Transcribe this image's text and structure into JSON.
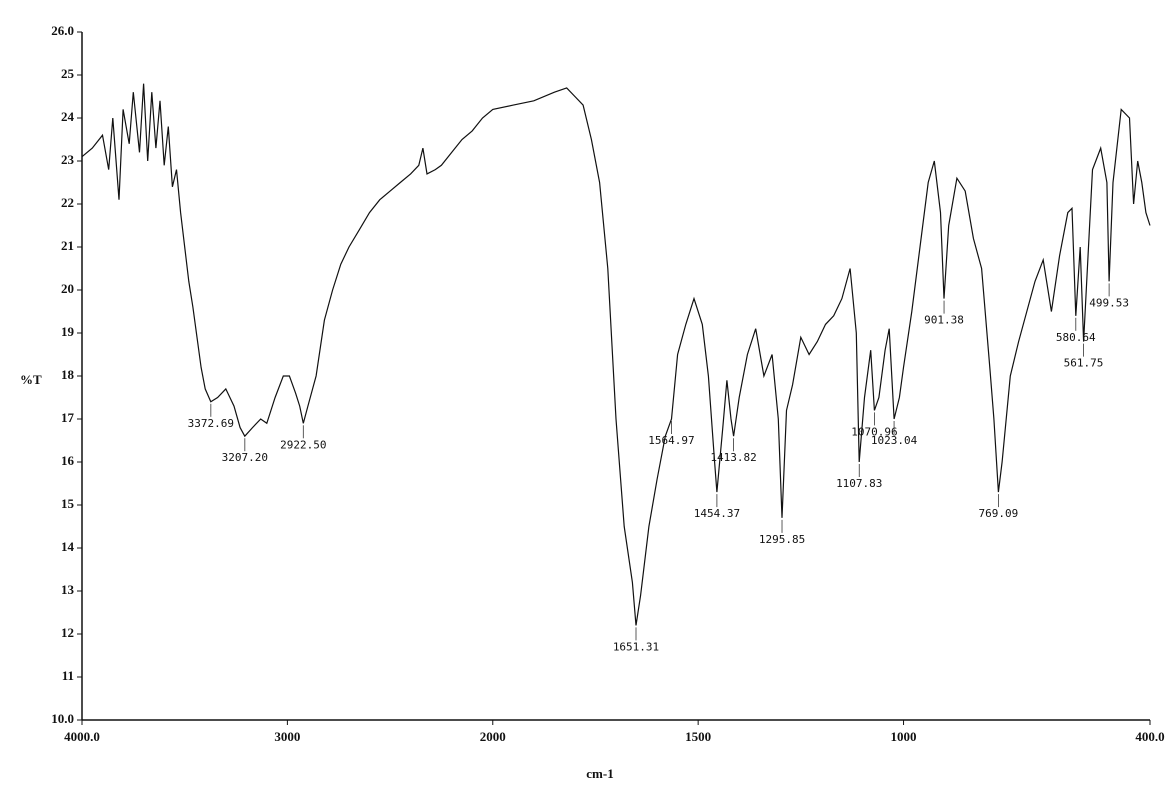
{
  "chart_data": {
    "type": "line",
    "xlabel": "cm-1",
    "ylabel": "%T",
    "xlim": [
      4000,
      400
    ],
    "xbreak": 2000,
    "xticks": [
      {
        "value": 4000,
        "label": "4000.0"
      },
      3000,
      2000,
      1500,
      1000,
      {
        "value": 400,
        "label": "400.0"
      }
    ],
    "ylim": [
      10,
      26
    ],
    "yticks": [
      {
        "value": 10,
        "label": "10.0"
      },
      11,
      12,
      13,
      14,
      15,
      16,
      17,
      18,
      19,
      20,
      21,
      22,
      23,
      24,
      25,
      {
        "value": 26,
        "label": "26.0"
      }
    ],
    "series": [
      {
        "color": "#111111",
        "x": [
          4000,
          3950,
          3900,
          3870,
          3850,
          3820,
          3800,
          3770,
          3750,
          3720,
          3700,
          3680,
          3660,
          3640,
          3620,
          3600,
          3580,
          3560,
          3540,
          3520,
          3500,
          3480,
          3460,
          3440,
          3420,
          3400,
          3372.69,
          3340,
          3300,
          3260,
          3230,
          3207.2,
          3170,
          3130,
          3100,
          3060,
          3020,
          2990,
          2960,
          2940,
          2922.5,
          2900,
          2860,
          2820,
          2780,
          2740,
          2700,
          2650,
          2600,
          2550,
          2500,
          2450,
          2400,
          2360,
          2340,
          2320,
          2280,
          2250,
          2200,
          2150,
          2100,
          2050,
          2000,
          1950,
          1900,
          1850,
          1820,
          1800,
          1780,
          1760,
          1740,
          1720,
          1700,
          1680,
          1660,
          1651.31,
          1640,
          1620,
          1600,
          1580,
          1564.97,
          1550,
          1530,
          1510,
          1490,
          1475,
          1460,
          1454.37,
          1440,
          1430,
          1420,
          1413.82,
          1400,
          1380,
          1360,
          1340,
          1320,
          1305,
          1295.85,
          1285,
          1270,
          1250,
          1230,
          1210,
          1190,
          1170,
          1150,
          1130,
          1115,
          1107.83,
          1095,
          1080,
          1070.96,
          1060,
          1045,
          1035,
          1023.04,
          1010,
          1000,
          980,
          960,
          940,
          925,
          910,
          901.38,
          890,
          870,
          850,
          830,
          810,
          790,
          780,
          769.09,
          760,
          740,
          720,
          700,
          680,
          660,
          640,
          620,
          600,
          590,
          580.64,
          570,
          561.75,
          540,
          520,
          505,
          499.53,
          490,
          470,
          450,
          440,
          430,
          420,
          410,
          400
        ],
        "values": [
          23.1,
          23.3,
          23.6,
          22.8,
          24.0,
          22.1,
          24.2,
          23.4,
          24.6,
          23.2,
          24.8,
          23.0,
          24.6,
          23.3,
          24.4,
          22.9,
          23.8,
          22.4,
          22.8,
          21.8,
          21.0,
          20.2,
          19.6,
          18.9,
          18.2,
          17.7,
          17.4,
          17.5,
          17.7,
          17.3,
          16.8,
          16.6,
          16.8,
          17.0,
          16.9,
          17.5,
          18.0,
          18.0,
          17.6,
          17.3,
          16.9,
          17.3,
          18.0,
          19.3,
          20.0,
          20.6,
          21.0,
          21.4,
          21.8,
          22.1,
          22.3,
          22.5,
          22.7,
          22.9,
          23.3,
          22.7,
          22.8,
          22.9,
          23.2,
          23.5,
          23.7,
          24.0,
          24.2,
          24.3,
          24.4,
          24.6,
          24.7,
          24.5,
          24.3,
          23.5,
          22.5,
          20.5,
          17.0,
          14.5,
          13.2,
          12.2,
          12.9,
          14.5,
          15.6,
          16.6,
          17.0,
          18.5,
          19.2,
          19.8,
          19.2,
          18.0,
          16.0,
          15.3,
          16.8,
          17.9,
          17.0,
          16.6,
          17.5,
          18.5,
          19.1,
          18.0,
          18.5,
          17.0,
          14.7,
          17.2,
          17.8,
          18.9,
          18.5,
          18.8,
          19.2,
          19.4,
          19.8,
          20.5,
          19.0,
          16.0,
          17.5,
          18.6,
          17.2,
          17.5,
          18.6,
          19.1,
          17.0,
          17.5,
          18.2,
          19.5,
          21.0,
          22.5,
          23.0,
          21.8,
          19.8,
          21.5,
          22.6,
          22.3,
          21.2,
          20.5,
          18.2,
          17.0,
          15.3,
          16.0,
          18.0,
          18.8,
          19.5,
          20.2,
          20.7,
          19.5,
          20.8,
          21.8,
          21.9,
          19.4,
          21.0,
          18.8,
          22.8,
          23.3,
          22.5,
          20.2,
          22.5,
          24.2,
          24.0,
          22.0,
          23.0,
          22.5,
          21.8,
          21.5
        ]
      }
    ],
    "peaks": {
      "x": [
        3372.69,
        3207.2,
        2922.5,
        1651.31,
        1564.97,
        1454.37,
        1413.82,
        1295.85,
        1107.83,
        1070.96,
        1023.04,
        901.38,
        769.09,
        561.75,
        580.64,
        499.53
      ],
      "y": [
        17.4,
        16.6,
        16.9,
        12.2,
        17.0,
        15.3,
        16.6,
        14.7,
        16.0,
        17.2,
        17.0,
        19.8,
        15.3,
        18.8,
        19.4,
        20.2
      ],
      "labels": [
        "3372.69",
        "3207.20",
        "2922.50",
        "1651.31",
        "1564.97",
        "1454.37",
        "1413.82",
        "1295.85",
        "1107.83",
        "1070.96",
        "1023.04",
        "901.38",
        "769.09",
        "561.75",
        "580.64",
        "499.53"
      ]
    }
  }
}
